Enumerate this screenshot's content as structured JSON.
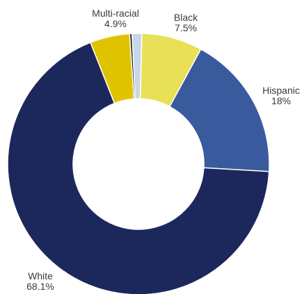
{
  "chart_data": {
    "type": "pie",
    "variant": "donut",
    "title": "",
    "slices": [
      {
        "name": "Black",
        "value": 7.5,
        "label_name": "Black",
        "label_value": "7.5%",
        "color": "#e8e056"
      },
      {
        "name": "Hispanic",
        "value": 18,
        "label_name": "Hispanic",
        "label_value": "18%",
        "color": "#3a5a9e"
      },
      {
        "name": "White",
        "value": 68.1,
        "label_name": "White",
        "label_value": "68.1%",
        "color": "#1c275c"
      },
      {
        "name": "Multi-racial",
        "value": 4.9,
        "label_name": "Multi-racial",
        "label_value": "4.9%",
        "color": "#e0c300"
      },
      {
        "name": "",
        "value": 0.3,
        "label_name": "",
        "label_value": "",
        "color": "#1a1a1a"
      },
      {
        "name": "",
        "value": 1.2,
        "label_name": "",
        "label_value": "",
        "color": "#c8d6ea"
      }
    ],
    "legend": "none"
  }
}
